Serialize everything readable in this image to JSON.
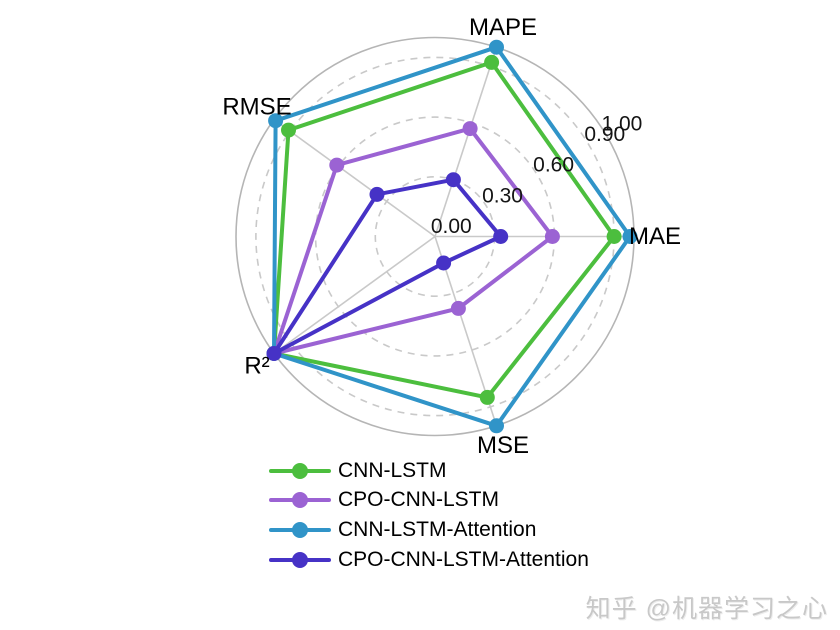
{
  "chart_data": {
    "type": "radar",
    "categories": [
      "MAPE",
      "MAE",
      "MSE",
      "R²",
      "RMSE"
    ],
    "axis_angles_deg": [
      72,
      0,
      288,
      216,
      144
    ],
    "rmin": 0,
    "rmax": 1.0,
    "radial_ticks": [
      "0.00",
      "0.30",
      "0.60",
      "0.90",
      "1.00"
    ],
    "radial_tick_values": [
      0.0,
      0.3,
      0.6,
      0.9,
      1.0
    ],
    "grid": {
      "dashed_levels": [
        0.3,
        0.6,
        0.9
      ],
      "solid_levels": [
        1.0
      ],
      "gridline_color": "#c9c9c9",
      "outer_circle_color": "#b5b5b5"
    },
    "series": [
      {
        "name": "CNN-LSTM",
        "color": "#4cbe3e",
        "values": [
          0.92,
          0.9,
          0.85,
          1.0,
          0.91
        ]
      },
      {
        "name": "CPO-CNN-LSTM",
        "color": "#9b63d3",
        "values": [
          0.57,
          0.59,
          0.38,
          1.0,
          0.61
        ]
      },
      {
        "name": "CNN-LSTM-Attention",
        "color": "#3094c8",
        "values": [
          1.0,
          0.98,
          1.0,
          1.0,
          0.99
        ]
      },
      {
        "name": "CPO-CNN-LSTM-Attention",
        "color": "#4632c6",
        "values": [
          0.3,
          0.33,
          0.14,
          1.0,
          0.36
        ]
      }
    ],
    "legend_position": "bottom-left"
  },
  "watermark": {
    "text": "知乎 @机器学习之心"
  }
}
